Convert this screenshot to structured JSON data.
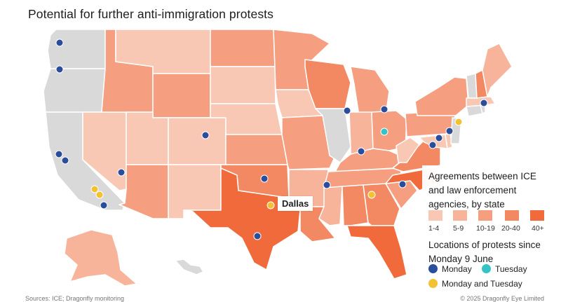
{
  "title": "Potential for further anti-immigration protests",
  "callout_label": "Dallas",
  "legend": {
    "agreements_title": "Agreements between ICE and law enforcement agencies, by state",
    "bins": [
      {
        "label": "1-4",
        "color": "#f9c8b4"
      },
      {
        "label": "5-9",
        "color": "#f7b49b"
      },
      {
        "label": "10-19",
        "color": "#f59e80"
      },
      {
        "label": "20-40",
        "color": "#f38962"
      },
      {
        "label": "40+",
        "color": "#f06a3c"
      }
    ],
    "no_data_color": "#d9d9d9",
    "protests_title": "Locations of protests since Monday 9 June",
    "protest_types": [
      {
        "label": "Monday",
        "color": "#2a4d9c"
      },
      {
        "label": "Tuesday",
        "color": "#35c3c6"
      },
      {
        "label": "Monday and Tuesday",
        "color": "#f2c232"
      }
    ]
  },
  "footer": {
    "source": "Sources: ICE; Dragonfly monitoring",
    "copyright": "© 2025 Dragonfly Eye Limited"
  },
  "states": [
    {
      "name": "WA",
      "bin": "none"
    },
    {
      "name": "OR",
      "bin": "none"
    },
    {
      "name": "CA",
      "bin": "none"
    },
    {
      "name": "NV",
      "bin": "1-4"
    },
    {
      "name": "ID",
      "bin": "10-19"
    },
    {
      "name": "MT",
      "bin": "1-4"
    },
    {
      "name": "WY",
      "bin": "10-19"
    },
    {
      "name": "UT",
      "bin": "1-4"
    },
    {
      "name": "CO",
      "bin": "1-4"
    },
    {
      "name": "AZ",
      "bin": "10-19"
    },
    {
      "name": "NM",
      "bin": "1-4"
    },
    {
      "name": "ND",
      "bin": "10-19"
    },
    {
      "name": "SD",
      "bin": "1-4"
    },
    {
      "name": "NE",
      "bin": "1-4"
    },
    {
      "name": "KS",
      "bin": "10-19"
    },
    {
      "name": "OK",
      "bin": "20-40"
    },
    {
      "name": "TX",
      "bin": "40+"
    },
    {
      "name": "MN",
      "bin": "10-19"
    },
    {
      "name": "IA",
      "bin": "1-4"
    },
    {
      "name": "MO",
      "bin": "10-19"
    },
    {
      "name": "AR",
      "bin": "5-9"
    },
    {
      "name": "LA",
      "bin": "20-40"
    },
    {
      "name": "WI",
      "bin": "20-40"
    },
    {
      "name": "IL",
      "bin": "none"
    },
    {
      "name": "MI",
      "bin": "10-19"
    },
    {
      "name": "IN",
      "bin": "5-9"
    },
    {
      "name": "OH",
      "bin": "10-19"
    },
    {
      "name": "KY",
      "bin": "10-19"
    },
    {
      "name": "TN",
      "bin": "10-19"
    },
    {
      "name": "MS",
      "bin": "5-9"
    },
    {
      "name": "AL",
      "bin": "20-40"
    },
    {
      "name": "GA",
      "bin": "20-40"
    },
    {
      "name": "FL",
      "bin": "40+"
    },
    {
      "name": "SC",
      "bin": "10-19"
    },
    {
      "name": "NC",
      "bin": "40+"
    },
    {
      "name": "VA",
      "bin": "20-40"
    },
    {
      "name": "WV",
      "bin": "1-4"
    },
    {
      "name": "PA",
      "bin": "10-19"
    },
    {
      "name": "NY",
      "bin": "10-19"
    },
    {
      "name": "VT",
      "bin": "none"
    },
    {
      "name": "NH",
      "bin": "20-40"
    },
    {
      "name": "ME",
      "bin": "5-9"
    },
    {
      "name": "MA",
      "bin": "1-4"
    },
    {
      "name": "CT",
      "bin": "none"
    },
    {
      "name": "RI",
      "bin": "none"
    },
    {
      "name": "NJ",
      "bin": "none"
    },
    {
      "name": "DE",
      "bin": "1-4"
    },
    {
      "name": "MD",
      "bin": "1-4"
    },
    {
      "name": "AK",
      "bin": "5-9"
    },
    {
      "name": "HI",
      "bin": "none"
    }
  ]
}
